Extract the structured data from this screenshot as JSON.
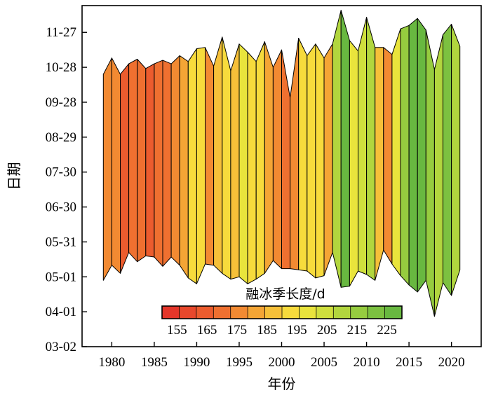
{
  "chart_data": {
    "type": "area",
    "title": "",
    "xlabel": "年份",
    "ylabel": "日期",
    "x_ticks": [
      "1980",
      "1985",
      "1990",
      "1995",
      "2000",
      "2005",
      "2010",
      "2015",
      "2020"
    ],
    "y_ticks": [
      "03-02",
      "04-01",
      "05-01",
      "05-31",
      "06-30",
      "07-30",
      "08-29",
      "09-28",
      "10-28",
      "11-27"
    ],
    "xlim": [
      1976.5,
      2023.5
    ],
    "ylim": [
      "03-02",
      "12-20"
    ],
    "series": [
      {
        "name": "start",
        "values": [
          {
            "year": 1979,
            "date": "04-28"
          },
          {
            "year": 1980,
            "date": "05-11"
          },
          {
            "year": 1981,
            "date": "05-04"
          },
          {
            "year": 1982,
            "date": "05-22"
          },
          {
            "year": 1983,
            "date": "05-14"
          },
          {
            "year": 1984,
            "date": "05-19"
          },
          {
            "year": 1985,
            "date": "05-18"
          },
          {
            "year": 1986,
            "date": "05-10"
          },
          {
            "year": 1987,
            "date": "05-18"
          },
          {
            "year": 1988,
            "date": "05-11"
          },
          {
            "year": 1989,
            "date": "04-30"
          },
          {
            "year": 1990,
            "date": "04-25"
          },
          {
            "year": 1991,
            "date": "05-12"
          },
          {
            "year": 1992,
            "date": "05-11"
          },
          {
            "year": 1993,
            "date": "05-04"
          },
          {
            "year": 1994,
            "date": "04-29"
          },
          {
            "year": 1995,
            "date": "05-01"
          },
          {
            "year": 1996,
            "date": "04-25"
          },
          {
            "year": 1997,
            "date": "04-29"
          },
          {
            "year": 1998,
            "date": "05-04"
          },
          {
            "year": 1999,
            "date": "05-15"
          },
          {
            "year": 2000,
            "date": "05-08"
          },
          {
            "year": 2001,
            "date": "05-08"
          },
          {
            "year": 2002,
            "date": "05-07"
          },
          {
            "year": 2003,
            "date": "05-06"
          },
          {
            "year": 2004,
            "date": "04-30"
          },
          {
            "year": 2005,
            "date": "05-02"
          },
          {
            "year": 2006,
            "date": "05-22"
          },
          {
            "year": 2007,
            "date": "04-22"
          },
          {
            "year": 2008,
            "date": "04-23"
          },
          {
            "year": 2009,
            "date": "05-06"
          },
          {
            "year": 2010,
            "date": "05-03"
          },
          {
            "year": 2011,
            "date": "04-28"
          },
          {
            "year": 2012,
            "date": "05-24"
          },
          {
            "year": 2013,
            "date": "05-12"
          },
          {
            "year": 2014,
            "date": "05-02"
          },
          {
            "year": 2015,
            "date": "04-24"
          },
          {
            "year": 2016,
            "date": "04-18"
          },
          {
            "year": 2017,
            "date": "04-28"
          },
          {
            "year": 2018,
            "date": "03-28"
          },
          {
            "year": 2019,
            "date": "04-26"
          },
          {
            "year": 2020,
            "date": "04-15"
          },
          {
            "year": 2021,
            "date": "05-07"
          }
        ]
      },
      {
        "name": "end",
        "values": [
          {
            "year": 1979,
            "date": "10-22"
          },
          {
            "year": 1980,
            "date": "11-05"
          },
          {
            "year": 1981,
            "date": "10-22"
          },
          {
            "year": 1982,
            "date": "10-31"
          },
          {
            "year": 1983,
            "date": "11-04"
          },
          {
            "year": 1984,
            "date": "10-27"
          },
          {
            "year": 1985,
            "date": "10-31"
          },
          {
            "year": 1986,
            "date": "11-03"
          },
          {
            "year": 1987,
            "date": "10-31"
          },
          {
            "year": 1988,
            "date": "11-07"
          },
          {
            "year": 1989,
            "date": "11-02"
          },
          {
            "year": 1990,
            "date": "11-13"
          },
          {
            "year": 1991,
            "date": "11-14"
          },
          {
            "year": 1992,
            "date": "10-29"
          },
          {
            "year": 1993,
            "date": "11-23"
          },
          {
            "year": 1994,
            "date": "10-25"
          },
          {
            "year": 1995,
            "date": "11-17"
          },
          {
            "year": 1996,
            "date": "11-10"
          },
          {
            "year": 1997,
            "date": "11-02"
          },
          {
            "year": 1998,
            "date": "11-19"
          },
          {
            "year": 1999,
            "date": "10-28"
          },
          {
            "year": 2000,
            "date": "11-12"
          },
          {
            "year": 2001,
            "date": "10-02"
          },
          {
            "year": 2002,
            "date": "11-22"
          },
          {
            "year": 2003,
            "date": "11-07"
          },
          {
            "year": 2004,
            "date": "11-17"
          },
          {
            "year": 2005,
            "date": "11-05"
          },
          {
            "year": 2006,
            "date": "11-17"
          },
          {
            "year": 2007,
            "date": "12-16"
          },
          {
            "year": 2008,
            "date": "11-20"
          },
          {
            "year": 2009,
            "date": "11-11"
          },
          {
            "year": 2010,
            "date": "12-10"
          },
          {
            "year": 2011,
            "date": "11-14"
          },
          {
            "year": 2012,
            "date": "11-14"
          },
          {
            "year": 2013,
            "date": "11-08"
          },
          {
            "year": 2014,
            "date": "11-30"
          },
          {
            "year": 2015,
            "date": "12-03"
          },
          {
            "year": 2016,
            "date": "12-09"
          },
          {
            "year": 2017,
            "date": "11-29"
          },
          {
            "year": 2018,
            "date": "10-26"
          },
          {
            "year": 2019,
            "date": "11-25"
          },
          {
            "year": 2020,
            "date": "12-04"
          },
          {
            "year": 2021,
            "date": "11-15"
          }
        ]
      }
    ],
    "colorbar": {
      "title": "融冰季长度/d",
      "ticks": [
        "155",
        "165",
        "175",
        "185",
        "195",
        "205",
        "215",
        "225"
      ],
      "range": [
        150,
        230
      ],
      "colors": [
        "#e4362a",
        "#e8482c",
        "#ec5c2e",
        "#ef7030",
        "#f28a32",
        "#f4a535",
        "#f6c039",
        "#f7db3c",
        "#e9e43c",
        "#cfdf3d",
        "#b2d63e",
        "#96cc3f",
        "#7cc140",
        "#68b840"
      ]
    },
    "grid": false,
    "legend": "none"
  }
}
